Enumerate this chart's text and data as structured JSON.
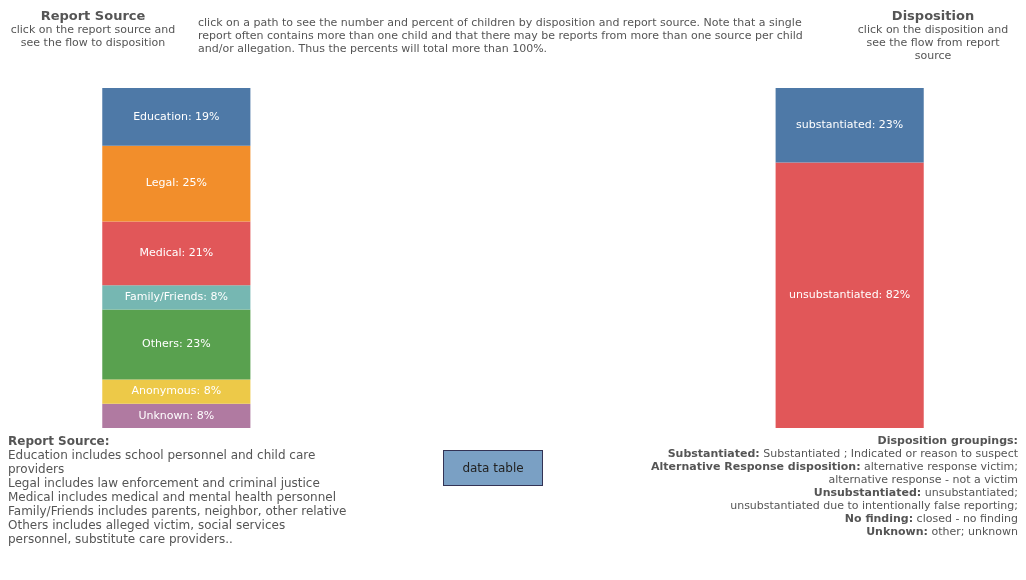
{
  "chart_data": {
    "type": "other",
    "categories": [
      "Report Source",
      "Disposition"
    ],
    "series": [
      {
        "color": "#4e79a7",
        "values": [
          19,
          null
        ],
        "value_labels": [
          "Education: 19%",
          null
        ]
      },
      {
        "color": "#f28e2b",
        "values": [
          25,
          null
        ],
        "value_labels": [
          "Legal: 25%",
          null
        ]
      },
      {
        "color": "#e15759",
        "values": [
          21,
          null
        ],
        "value_labels": [
          "Medical: 21%",
          null
        ]
      },
      {
        "color": "#76b7b2",
        "values": [
          8,
          null
        ],
        "value_labels": [
          "Family/Friends: 8%",
          null
        ]
      },
      {
        "color": "#59a14f",
        "values": [
          23,
          null
        ],
        "value_labels": [
          "Others: 23%",
          null
        ]
      },
      {
        "color": "#edc948",
        "values": [
          8,
          null
        ],
        "value_labels": [
          "Anonymous: 8%",
          null
        ]
      },
      {
        "color": "#b07aa1",
        "values": [
          8,
          null
        ],
        "value_labels": [
          "Unknown: 8%",
          null
        ]
      },
      {
        "color": "#4e79a7",
        "values": [
          null,
          23
        ],
        "value_labels": [
          null,
          "substantiated: 23%"
        ]
      },
      {
        "color": "#e15759",
        "values": [
          null,
          82
        ],
        "value_labels": [
          null,
          "unsubstantiated: 82%"
        ]
      }
    ],
    "annotations": [
      "click on the report source and see the flow to disposition",
      "click on a path to see the number and percent of children by  disposition and report source. Note that a single report often contains more than one child and that there may be reports from more than one source per child and/or allegation. Thus the percents will total more than 100%.",
      "click on the disposition and see the flow from report source",
      "Report Source:",
      "Education includes school personnel and  child care providers",
      "Legal includes law enforcement and criminal justice",
      "Medical includes  medical and mental health personnel",
      "Family/Friends includes parents, neighbor, other relative",
      "Others includes alleged victim, social services personnel, substitute care providers..",
      "data table",
      "Disposition groupings:",
      "Substantiated: Substantiated ; Indicated or reason to suspect",
      "Alternative Response disposition: alternative response victim;",
      "alternative response - not a  victim",
      "Unsubstantiated: unsubstantiated;",
      "unsubstantiated due to intentionally false reporting;",
      "No finding: closed - no finding",
      "Unknown: other; unknown"
    ]
  }
}
